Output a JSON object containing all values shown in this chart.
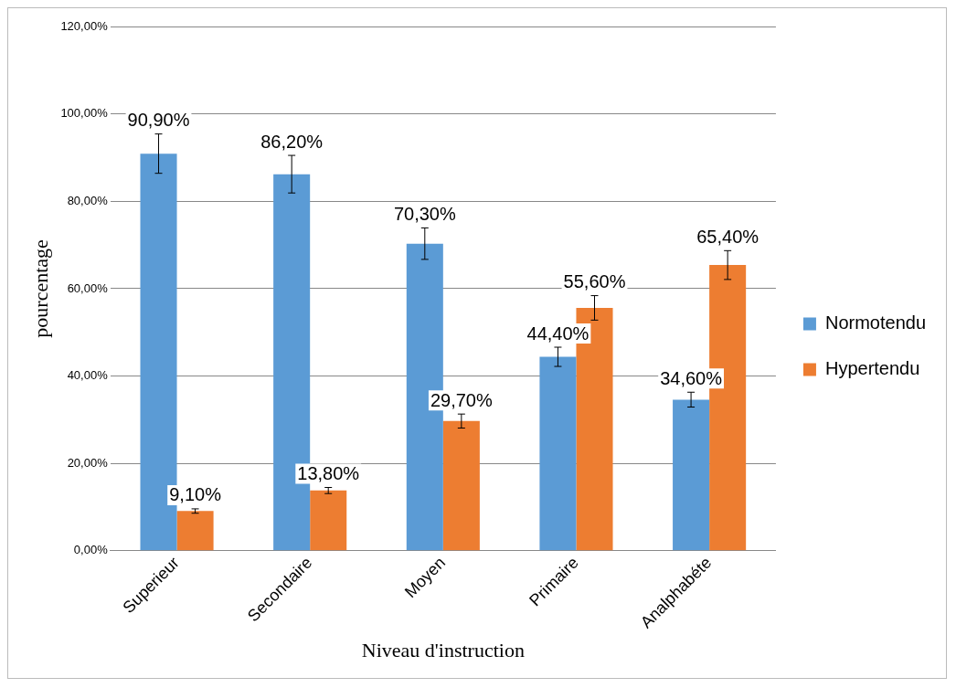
{
  "chart_data": {
    "type": "bar",
    "xlabel": "Niveau d'instruction",
    "ylabel": "pourcentage",
    "categories": [
      "Superieur",
      "Secondaire",
      "Moyen",
      "Primaire",
      "Analphabéte"
    ],
    "series": [
      {
        "name": "Normotendu",
        "color": "#5b9bd5",
        "values": [
          90.9,
          86.2,
          70.3,
          44.4,
          34.6
        ],
        "errors": [
          4.5,
          4.3,
          3.6,
          2.2,
          1.7
        ],
        "value_labels": [
          "90,90%",
          "86,20%",
          "70,30%",
          "44,40%",
          "34,60%"
        ]
      },
      {
        "name": "Hypertendu",
        "color": "#ed7d31",
        "values": [
          9.1,
          13.8,
          29.7,
          55.6,
          65.4
        ],
        "errors": [
          0.5,
          0.7,
          1.6,
          2.8,
          3.3
        ],
        "value_labels": [
          "9,10%",
          "13,80%",
          "29,70%",
          "55,60%",
          "65,40%"
        ]
      }
    ],
    "ylim": [
      0,
      120
    ],
    "yticks": [
      {
        "value": 0,
        "label": "0,00%"
      },
      {
        "value": 20,
        "label": "20,00%"
      },
      {
        "value": 40,
        "label": "40,00%"
      },
      {
        "value": 60,
        "label": "60,00%"
      },
      {
        "value": 80,
        "label": "80,00%"
      },
      {
        "value": 100,
        "label": "100,00%"
      },
      {
        "value": 120,
        "label": "120,00%"
      }
    ],
    "grid": "y",
    "legend": "right"
  }
}
